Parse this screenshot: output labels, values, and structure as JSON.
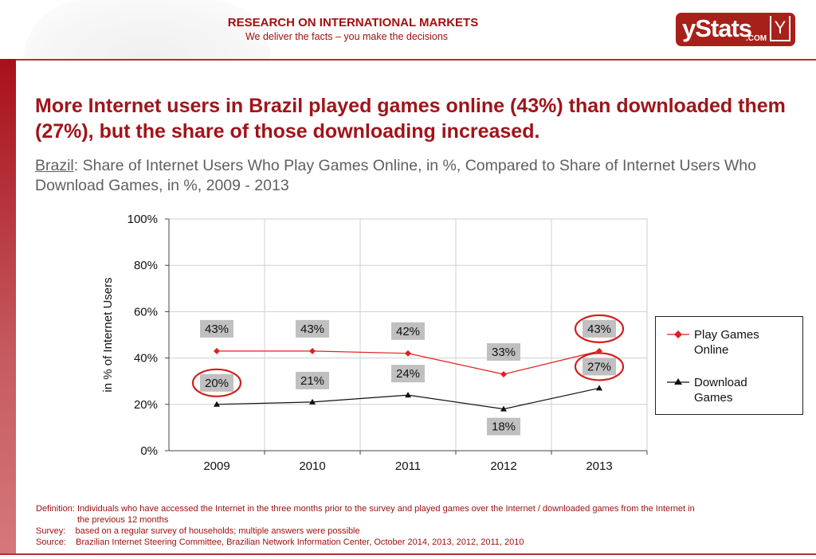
{
  "header": {
    "tagline_title": "RESEARCH ON INTERNATIONAL MARKETS",
    "tagline_sub": "We deliver the facts – you make the decisions",
    "logo_text": "yStats",
    "logo_domain": ".COM",
    "logo_mark": "Y"
  },
  "headline": "More Internet users in Brazil played games online (43%) than downloaded them (27%), but the share of those downloading increased.",
  "subtitle": {
    "country": "Brazil",
    "text": ": Share of Internet Users Who Play Games Online, in %, Compared to Share of Internet Users Who Download Games, in %, 2009 - 2013"
  },
  "chart_data": {
    "type": "line",
    "categories": [
      "2009",
      "2010",
      "2011",
      "2012",
      "2013"
    ],
    "ylabel": "in % of Internet Users",
    "ylim": [
      0,
      100
    ],
    "yticks": [
      "0%",
      "20%",
      "40%",
      "60%",
      "80%",
      "100%"
    ],
    "grid": true,
    "legend_position": "right",
    "series": [
      {
        "name": "Play Games Online",
        "values": [
          43,
          43,
          42,
          33,
          43
        ],
        "labels": [
          "43%",
          "43%",
          "42%",
          "33%",
          "43%"
        ],
        "color": "#e02020",
        "marker": "diamond",
        "highlighted": [
          4
        ]
      },
      {
        "name": "Download Games",
        "values": [
          20,
          21,
          24,
          18,
          27
        ],
        "labels": [
          "20%",
          "21%",
          "24%",
          "18%",
          "27%"
        ],
        "color": "#111111",
        "marker": "triangle",
        "highlighted": [
          0,
          4
        ]
      }
    ]
  },
  "footer": {
    "definition_label": "Definition:",
    "definition": "Individuals who have accessed the Internet in the three months prior to the survey and played games over the Internet / downloaded games from the Internet in",
    "definition_cont": "the previous 12 months",
    "survey_label": "Survey:",
    "survey": "based on a regular survey of households; multiple answers were possible",
    "source_label": "Source:",
    "source": "Brazilian Internet Steering Committee, Brazilian Network Information Center, October 2014, 2013, 2012, 2011, 2010"
  },
  "colors": {
    "brand": "#a0141a",
    "highlight": "#d02020",
    "label_bg": "#c0c0c0"
  }
}
